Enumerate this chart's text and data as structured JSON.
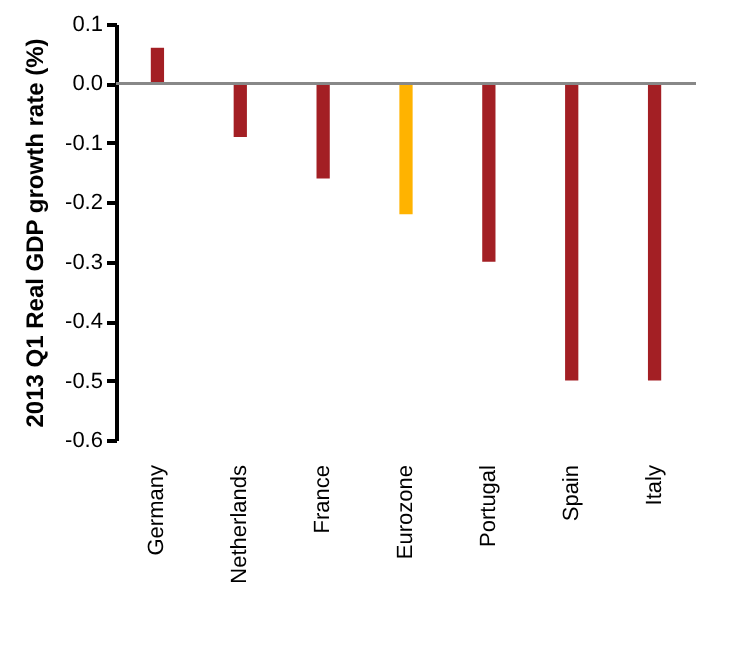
{
  "chart_data": {
    "type": "bar",
    "ylabel": "2013 Q1 Real GDP growth rate (%)",
    "categories": [
      "Germany",
      "Netherlands",
      "France",
      "Eurozone",
      "Portugal",
      "Spain",
      "Italy"
    ],
    "values": [
      0.06,
      -0.09,
      -0.16,
      -0.22,
      -0.3,
      -0.5,
      -0.5
    ],
    "colors": [
      "#a31f24",
      "#a31f24",
      "#a31f24",
      "#ffb300",
      "#a31f24",
      "#a31f24",
      "#a31f24"
    ],
    "ylim": [
      -0.6,
      0.1
    ],
    "yticks": [
      {
        "value": -0.6,
        "label": "-0.6"
      },
      {
        "value": -0.5,
        "label": "-0.5"
      },
      {
        "value": -0.4,
        "label": "-0.4"
      },
      {
        "value": -0.3,
        "label": "-0.3"
      },
      {
        "value": -0.2,
        "label": "-0.2"
      },
      {
        "value": -0.1,
        "label": "-0.1"
      },
      {
        "value": 0,
        "label": "0.0"
      },
      {
        "value": 0.1,
        "label": "0.1"
      }
    ],
    "ref_lines": [
      {
        "axis": "y",
        "value": 0,
        "color": "#888888"
      }
    ],
    "grid": false
  }
}
